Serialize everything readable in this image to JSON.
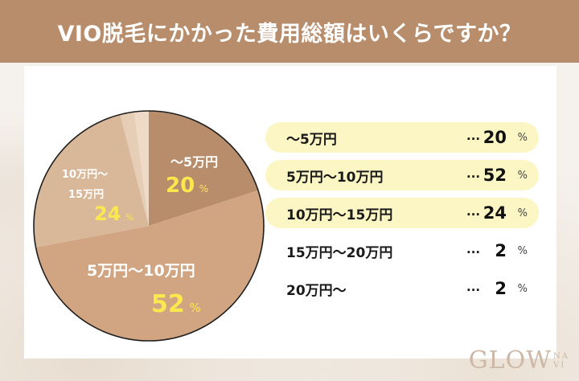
{
  "header": {
    "title": "VIO脱毛にかかった費用総額はいくらですか？"
  },
  "colors": {
    "header_bg": "#b88d6b",
    "highlight": "#fcf6c4",
    "pct_yellow": "#fbe84f",
    "slices": [
      "#b88d6b",
      "#d1a581",
      "#d9b89a",
      "#e6cdb6",
      "#efdac8"
    ]
  },
  "pie_labels": [
    {
      "label": "〜5万円",
      "value": "20",
      "unit": "%"
    },
    {
      "label": "5万円〜10万円",
      "value": "52",
      "unit": "%"
    },
    {
      "label_line1": "10万円〜",
      "label_line2": "15万円",
      "value": "24",
      "unit": "%"
    }
  ],
  "legend": [
    {
      "label": "〜5万円",
      "dots": "...",
      "value": "20",
      "unit": "%",
      "highlight": true
    },
    {
      "label": "5万円〜10万円",
      "dots": "...",
      "value": "52",
      "unit": "%",
      "highlight": true
    },
    {
      "label": "10万円〜15万円",
      "dots": "...",
      "value": "24",
      "unit": "%",
      "highlight": true
    },
    {
      "label": "15万円〜20万円",
      "dots": "...",
      "value": "2",
      "unit": "%",
      "highlight": false
    },
    {
      "label": "20万円〜",
      "dots": "...",
      "value": "2",
      "unit": "%",
      "highlight": false
    }
  ],
  "logo": {
    "main": "GLOW",
    "sub_top": "NA",
    "sub_bottom": "VI"
  },
  "chart_data": {
    "type": "pie",
    "title": "VIO脱毛にかかった費用総額はいくらですか？",
    "categories": [
      "〜5万円",
      "5万円〜10万円",
      "10万円〜15万円",
      "15万円〜20万円",
      "20万円〜"
    ],
    "values": [
      20,
      52,
      24,
      2,
      2
    ],
    "unit": "%",
    "start_angle": "12 o'clock",
    "direction": "clockwise",
    "legend_position": "right"
  }
}
